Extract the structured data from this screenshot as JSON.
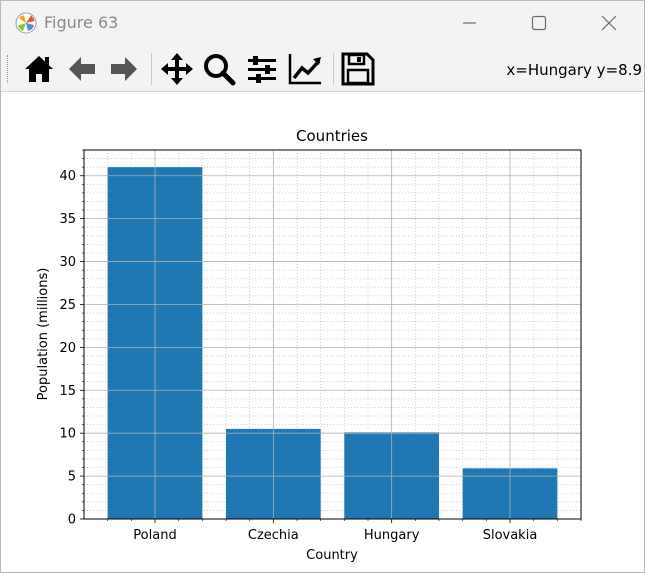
{
  "window": {
    "title": "Figure 63",
    "minimize_icon": "minimize-icon",
    "maximize_icon": "maximize-icon",
    "close_icon": "close-icon"
  },
  "toolbar": {
    "buttons": [
      {
        "name": "home-button",
        "icon": "home-icon"
      },
      {
        "name": "back-button",
        "icon": "arrow-left-icon"
      },
      {
        "name": "forward-button",
        "icon": "arrow-right-icon"
      },
      {
        "name": "pan-button",
        "icon": "move-icon"
      },
      {
        "name": "zoom-button",
        "icon": "magnifier-icon"
      },
      {
        "name": "subplots-button",
        "icon": "sliders-icon"
      },
      {
        "name": "customize-button",
        "icon": "line-chart-icon"
      },
      {
        "name": "save-button",
        "icon": "floppy-disk-icon"
      }
    ],
    "coords": "x=Hungary y=8.9"
  },
  "chart_data": {
    "type": "bar",
    "title": "Countries",
    "xlabel": "Country",
    "ylabel": "Population (millions)",
    "categories": [
      "Poland",
      "Czechia",
      "Hungary",
      "Slovakia"
    ],
    "values": [
      41.0,
      10.5,
      10.1,
      5.9
    ],
    "ylim": [
      0,
      43
    ],
    "yticks": [
      0,
      5,
      10,
      15,
      20,
      25,
      30,
      35,
      40
    ],
    "ytick_labels": [
      "0",
      "5",
      "10",
      "15",
      "20",
      "25",
      "30",
      "35",
      "40"
    ],
    "grid": "major solid and minor dotted",
    "bar_color": "#1f77b4"
  }
}
